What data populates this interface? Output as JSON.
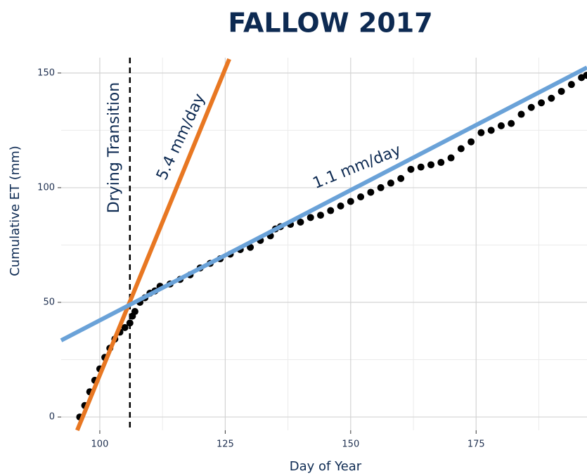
{
  "chart_data": {
    "type": "scatter",
    "title": "FALLOW 2017",
    "x_label": "Day of Year",
    "y_label": "Cumulative ET (mm)",
    "xlim": [
      92.3,
      197.1
    ],
    "ylim": [
      -5.8,
      156.7
    ],
    "xticks": [
      100,
      125,
      150,
      175
    ],
    "yticks": [
      0,
      50,
      100,
      150
    ],
    "grid": true,
    "point_color": "#000000",
    "x": [
      96,
      97,
      98,
      99,
      100,
      101,
      102,
      103,
      104,
      105,
      106,
      106.5,
      107,
      108,
      109,
      110,
      111,
      112,
      114,
      116,
      118,
      120,
      122,
      124,
      126,
      128,
      130,
      132,
      134,
      135,
      136,
      138,
      140,
      142,
      144,
      146,
      148,
      150,
      152,
      154,
      156,
      158,
      160,
      162,
      164,
      166,
      168,
      170,
      172,
      174,
      176,
      178,
      180,
      182,
      184,
      186,
      188,
      190,
      192,
      194,
      196,
      197
    ],
    "values": [
      0,
      5,
      11,
      16,
      21,
      26,
      30,
      34,
      37,
      39,
      41,
      44,
      46,
      50,
      52,
      54,
      55,
      57,
      58,
      60,
      62,
      65,
      67,
      69,
      71,
      73,
      74,
      77,
      79,
      82,
      83,
      84,
      85,
      87,
      88,
      90,
      92,
      94,
      96,
      98,
      100,
      102,
      104,
      108,
      109,
      110,
      111,
      113,
      117,
      120,
      124,
      125,
      127,
      128,
      132,
      135,
      137,
      139,
      142,
      145,
      148,
      149
    ],
    "vline": {
      "x": 106,
      "label": "Drying Transition"
    },
    "fit_lines": [
      {
        "label": "5.4 mm/day",
        "color": "#e87722",
        "x": [
          95.5,
          125.8
        ],
        "values": [
          -5.8,
          156.1
        ]
      },
      {
        "label": "1.1 mm/day",
        "color": "#6aa2d8",
        "x": [
          92.3,
          197.1
        ],
        "values": [
          33.4,
          152.4
        ]
      }
    ]
  }
}
